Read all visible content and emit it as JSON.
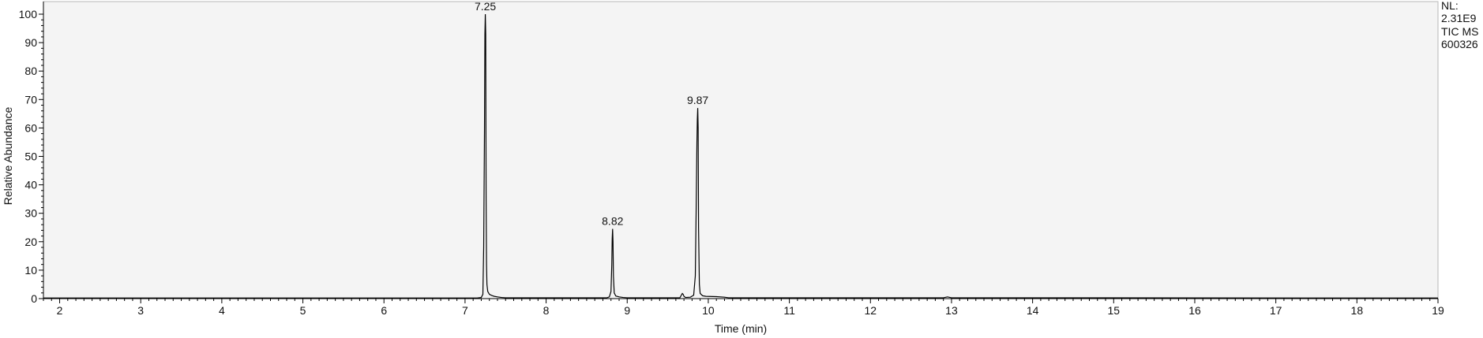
{
  "chart_data": {
    "type": "line",
    "title": "",
    "xlabel": "Time (min)",
    "ylabel": "Relative Abundance",
    "xlim": [
      1.8,
      19.0
    ],
    "ylim": [
      0,
      100
    ],
    "grid": false,
    "x_ticks": [
      "2",
      "3",
      "4",
      "5",
      "6",
      "7",
      "8",
      "9",
      "10",
      "11",
      "12",
      "13",
      "14",
      "15",
      "16",
      "17",
      "18",
      "19"
    ],
    "y_ticks": [
      "0",
      "10",
      "20",
      "30",
      "40",
      "50",
      "60",
      "70",
      "80",
      "90",
      "100"
    ],
    "info_text": [
      "NL:",
      "2.31E9",
      "TIC  MS",
      "600326"
    ],
    "peak_labels": [
      {
        "x": 7.25,
        "y": 100,
        "text": "7.25"
      },
      {
        "x": 8.82,
        "y": 24.5,
        "text": "8.82"
      },
      {
        "x": 9.87,
        "y": 67,
        "text": "9.87"
      }
    ],
    "series": [
      {
        "x": [
          1.8,
          7.15,
          7.2,
          7.22,
          7.23,
          7.24,
          7.245,
          7.25,
          7.255,
          7.26,
          7.265,
          7.27,
          7.28,
          7.3,
          7.33,
          7.36,
          7.4,
          7.45,
          7.5,
          8.75,
          8.78,
          8.8,
          8.81,
          8.815,
          8.82,
          8.825,
          8.83,
          8.84,
          8.86,
          8.9,
          8.95,
          9.0,
          9.65,
          9.68,
          9.69,
          9.7,
          9.72,
          9.78,
          9.82,
          9.84,
          9.85,
          9.86,
          9.865,
          9.87,
          9.875,
          9.88,
          9.89,
          9.9,
          9.93,
          9.97,
          10.1,
          10.2,
          10.25,
          12.9,
          12.95,
          13.0,
          19.0
        ],
        "y": [
          0.2,
          0.2,
          0.4,
          1.5,
          18,
          60,
          93,
          100,
          93,
          35,
          12,
          5,
          2.5,
          1.5,
          1.1,
          0.8,
          0.6,
          0.4,
          0.3,
          0.3,
          0.6,
          2.5,
          12,
          21,
          24.5,
          20,
          8,
          2,
          0.9,
          0.6,
          0.4,
          0.3,
          0.3,
          1.8,
          1.5,
          0.8,
          0.4,
          0.5,
          1.2,
          8,
          30,
          55,
          63,
          67,
          60,
          25,
          5,
          1.8,
          1.0,
          0.8,
          0.7,
          0.5,
          0.3,
          0.3,
          0.6,
          0.3,
          0.2
        ]
      }
    ]
  }
}
